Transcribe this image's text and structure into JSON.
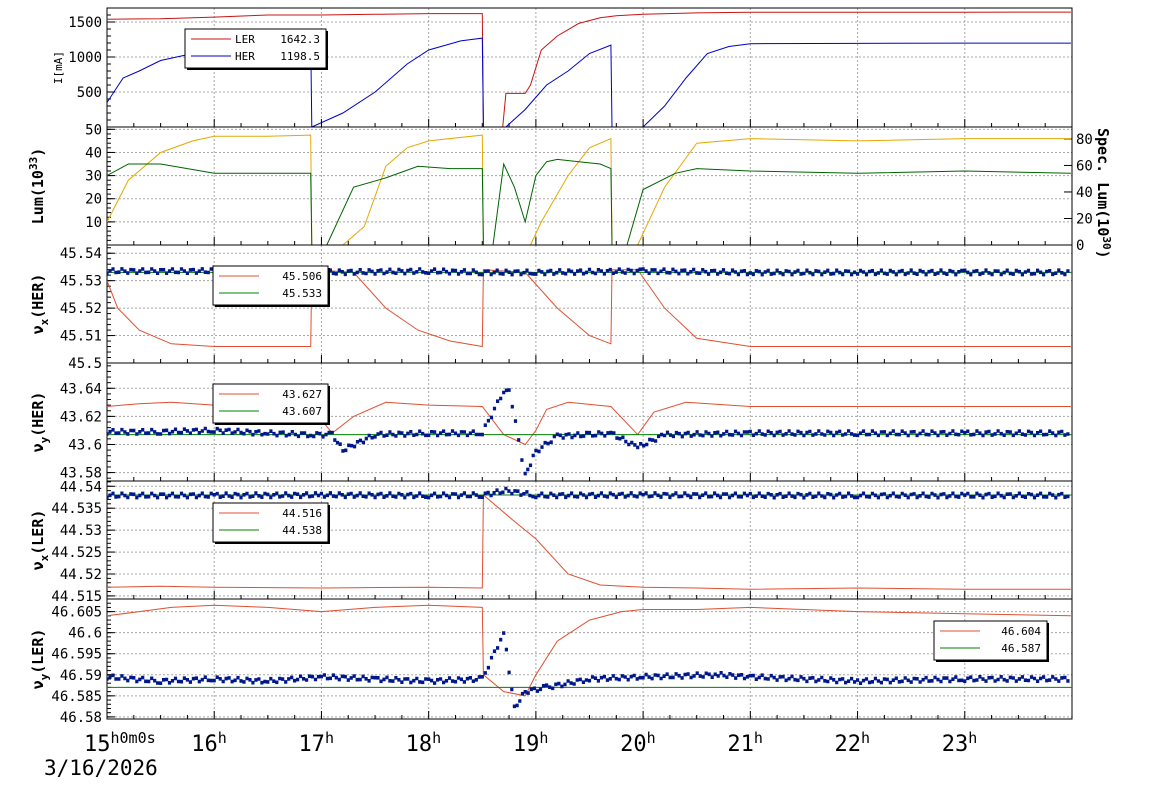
{
  "time_axis": {
    "tick_labels": [
      "15",
      "16",
      "17",
      "18",
      "19",
      "20",
      "21",
      "22",
      "23"
    ],
    "hour_suffix": "h",
    "first_tick_suffix": "0m0s",
    "date": "3/16/2026"
  },
  "chart_data": [
    {
      "type": "line",
      "ylabel": "I[mA]",
      "xlim": [
        15,
        24
      ],
      "ylim": [
        0,
        1700
      ],
      "yticks": [
        500,
        1000,
        1500
      ],
      "ytick_labels": [
        "500",
        "1000",
        "1500"
      ],
      "legend": {
        "placement": "top-left",
        "entries": [
          {
            "label": "LER",
            "value": "1642.3",
            "color": "#c81414"
          },
          {
            "label": "HER",
            "value": "1198.5",
            "color": "#0000c8"
          }
        ]
      },
      "series": [
        {
          "name": "LER",
          "color": "#c81414",
          "x": [
            15,
            15.5,
            16,
            16.5,
            17,
            17.5,
            18,
            18.5,
            18.51,
            18.69,
            18.72,
            18.9,
            18.95,
            19.05,
            19.2,
            19.4,
            19.6,
            19.75,
            20,
            20.5,
            21,
            22,
            23,
            23.99
          ],
          "y": [
            1540,
            1545,
            1570,
            1600,
            1600,
            1610,
            1620,
            1620,
            0,
            0,
            480,
            480,
            600,
            1100,
            1300,
            1480,
            1560,
            1590,
            1610,
            1630,
            1640,
            1640,
            1640,
            1642
          ]
        },
        {
          "name": "HER",
          "color": "#0000c8",
          "x": [
            15,
            15.15,
            15.3,
            15.5,
            15.8,
            16,
            16.3,
            16.6,
            16.9,
            16.91,
            17.2,
            17.5,
            17.8,
            18,
            18.3,
            18.5,
            18.51,
            18.72,
            18.9,
            19.1,
            19.3,
            19.5,
            19.7,
            19.71,
            20,
            20.2,
            20.4,
            20.6,
            20.8,
            21,
            22,
            23,
            23.99
          ],
          "y": [
            350,
            700,
            800,
            950,
            1050,
            1150,
            1200,
            1250,
            1250,
            0,
            200,
            500,
            900,
            1100,
            1230,
            1270,
            0,
            0,
            250,
            600,
            800,
            1050,
            1170,
            0,
            0,
            300,
            700,
            1050,
            1150,
            1190,
            1195,
            1198,
            1198
          ]
        }
      ]
    },
    {
      "type": "line",
      "ylabel": "Lum(10",
      "ylabel_exp": "33",
      "ylabel_close": ")",
      "ylabel_right": "Spec. Lum(10",
      "ylabel_right_exp": "30",
      "ylabel_right_close": ")",
      "xlim": [
        15,
        24
      ],
      "ylim": [
        0,
        51
      ],
      "ylim_right": [
        0,
        89
      ],
      "yticks": [
        10,
        20,
        30,
        40,
        50
      ],
      "ytick_labels": [
        "10",
        "20",
        "30",
        "40",
        "50"
      ],
      "yticks_right": [
        0,
        20,
        40,
        60,
        80
      ],
      "ytick_labels_right": [
        "0",
        "20",
        "40",
        "60",
        "80"
      ],
      "series": [
        {
          "color": "#e6a800",
          "x": [
            15,
            15.2,
            15.5,
            15.8,
            16,
            16.5,
            16.9,
            16.91,
            17.2,
            17.4,
            17.6,
            17.8,
            18,
            18.5,
            18.51,
            18.95,
            19.05,
            19.3,
            19.5,
            19.7,
            19.71,
            19.95,
            20.2,
            20.5,
            21,
            22,
            23,
            23.99
          ],
          "y": [
            10,
            28,
            40,
            45,
            47,
            47,
            47.5,
            0,
            0,
            8,
            34,
            42,
            45,
            47.5,
            0,
            0,
            10,
            30,
            42,
            46,
            0,
            0,
            25,
            44,
            46,
            45,
            46,
            46
          ]
        },
        {
          "color": "#006400",
          "x": [
            15,
            15.2,
            15.5,
            16,
            16.5,
            16.9,
            16.91,
            17.05,
            17.3,
            17.6,
            17.9,
            18.2,
            18.5,
            18.51,
            18.6,
            18.7,
            18.8,
            18.9,
            19.0,
            19.1,
            19.2,
            19.4,
            19.6,
            19.7,
            19.71,
            19.85,
            20,
            20.3,
            20.5,
            21,
            22,
            23,
            23.99
          ],
          "y": [
            30,
            35,
            35,
            31,
            31,
            31,
            0,
            0,
            25,
            29,
            34,
            33,
            33,
            0,
            0,
            35,
            25,
            10,
            30,
            36,
            37,
            36,
            35,
            33,
            0,
            0,
            24,
            31,
            33,
            32,
            31,
            32,
            31
          ]
        }
      ]
    },
    {
      "type": "line",
      "ylabel": "ν",
      "ylabel_sub": "x",
      "ylabel_tail": "(HER)",
      "xlim": [
        15,
        24
      ],
      "ylim": [
        45.5,
        45.543
      ],
      "yticks": [
        45.5,
        45.51,
        45.52,
        45.53,
        45.54
      ],
      "ytick_labels": [
        "45.5",
        "45.51",
        "45.52",
        "45.53",
        "45.54"
      ],
      "legend": {
        "placement": "top-left",
        "entries": [
          {
            "label": "",
            "value": "45.506",
            "color": "#e05030"
          },
          {
            "label": "",
            "value": "45.533",
            "color": "#008000"
          }
        ]
      },
      "series": [
        {
          "color": "#e05030",
          "x": [
            15,
            15.1,
            15.3,
            15.6,
            16,
            16.5,
            16.9,
            16.91,
            17.3,
            17.6,
            17.9,
            18.2,
            18.5,
            18.51,
            18.9,
            19.2,
            19.5,
            19.7,
            19.71,
            19.95,
            20.2,
            20.5,
            21,
            22,
            23,
            23.99
          ],
          "y": [
            45.53,
            45.52,
            45.512,
            45.507,
            45.506,
            45.506,
            45.506,
            45.534,
            45.533,
            45.52,
            45.512,
            45.508,
            45.506,
            45.534,
            45.533,
            45.52,
            45.51,
            45.507,
            45.534,
            45.534,
            45.52,
            45.509,
            45.506,
            45.506,
            45.506,
            45.506
          ]
        },
        {
          "color": "#008000",
          "x": [
            15,
            24
          ],
          "y": [
            45.533,
            45.533
          ]
        },
        {
          "color": "#00188c",
          "marker": "dots",
          "x": [
            15,
            16,
            17,
            18,
            18.5,
            19,
            20,
            21,
            22,
            23,
            23.99
          ],
          "y": [
            45.5335,
            45.5335,
            45.533,
            45.5335,
            45.533,
            45.533,
            45.5335,
            45.533,
            45.533,
            45.533,
            45.533
          ]
        }
      ]
    },
    {
      "type": "line",
      "ylabel": "ν",
      "ylabel_sub": "y",
      "ylabel_tail": "(HER)",
      "xlim": [
        15,
        24
      ],
      "ylim": [
        43.574,
        43.658
      ],
      "yticks": [
        43.58,
        43.6,
        43.62,
        43.64
      ],
      "ytick_labels": [
        "43.58",
        "43.6",
        "43.62",
        "43.64"
      ],
      "legend": {
        "placement": "top-left",
        "entries": [
          {
            "label": "",
            "value": "43.627",
            "color": "#e05030"
          },
          {
            "label": "",
            "value": "43.607",
            "color": "#008000"
          }
        ]
      },
      "series": [
        {
          "color": "#e05030",
          "x": [
            15,
            15.3,
            15.6,
            16,
            16.5,
            16.9,
            17.1,
            17.3,
            17.6,
            18,
            18.5,
            18.7,
            18.9,
            19.0,
            19.1,
            19.3,
            19.7,
            19.95,
            20.1,
            20.4,
            21,
            22,
            23,
            23.99
          ],
          "y": [
            43.627,
            43.629,
            43.63,
            43.628,
            43.627,
            43.627,
            43.608,
            43.62,
            43.63,
            43.628,
            43.627,
            43.607,
            43.6,
            43.61,
            43.625,
            43.63,
            43.627,
            43.607,
            43.623,
            43.63,
            43.627,
            43.627,
            43.627,
            43.627
          ]
        },
        {
          "color": "#008000",
          "x": [
            15,
            24
          ],
          "y": [
            43.607,
            43.607
          ]
        },
        {
          "color": "#00188c",
          "marker": "dots",
          "x": [
            15,
            15.5,
            16,
            16.5,
            16.9,
            17.1,
            17.2,
            17.5,
            18,
            18.5,
            18.7,
            18.75,
            18.9,
            19.0,
            19.2,
            19.5,
            19.7,
            19.95,
            20.2,
            21,
            22,
            23,
            23.99
          ],
          "y": [
            43.609,
            43.609,
            43.61,
            43.608,
            43.607,
            43.607,
            43.596,
            43.607,
            43.608,
            43.608,
            43.638,
            43.64,
            43.578,
            43.595,
            43.606,
            43.607,
            43.608,
            43.598,
            43.607,
            43.608,
            43.608,
            43.608,
            43.608
          ]
        }
      ]
    },
    {
      "type": "line",
      "ylabel": "ν",
      "ylabel_sub": "x",
      "ylabel_tail": "(LER)",
      "xlim": [
        15,
        24
      ],
      "ylim": [
        44.5143,
        44.5412
      ],
      "yticks": [
        44.515,
        44.52,
        44.525,
        44.53,
        44.535,
        44.54
      ],
      "ytick_labels": [
        "44.515",
        "44.52",
        "44.525",
        "44.53",
        "44.535",
        "44.54"
      ],
      "legend": {
        "placement": "top-left",
        "entries": [
          {
            "label": "",
            "value": "44.516",
            "color": "#e05030"
          },
          {
            "label": "",
            "value": "44.538",
            "color": "#008000"
          }
        ]
      },
      "series": [
        {
          "color": "#e05030",
          "x": [
            15,
            15.5,
            16,
            17,
            18,
            18.5,
            18.51,
            18.8,
            19.0,
            19.3,
            19.6,
            20,
            20.5,
            21,
            22,
            23,
            23.99
          ],
          "y": [
            44.517,
            44.5172,
            44.517,
            44.5168,
            44.517,
            44.5168,
            44.538,
            44.532,
            44.528,
            44.52,
            44.5175,
            44.517,
            44.5168,
            44.5165,
            44.5168,
            44.5165,
            44.5165
          ]
        },
        {
          "color": "#008000",
          "x": [
            15,
            24
          ],
          "y": [
            44.538,
            44.538
          ]
        },
        {
          "color": "#00188c",
          "marker": "dots",
          "x": [
            15,
            16,
            17,
            18,
            18.5,
            18.72,
            19,
            20,
            21,
            22,
            23,
            23.99
          ],
          "y": [
            44.5379,
            44.5379,
            44.538,
            44.5379,
            44.538,
            44.539,
            44.5379,
            44.538,
            44.5379,
            44.5379,
            44.5379,
            44.5379
          ]
        }
      ]
    },
    {
      "type": "line",
      "ylabel": "ν",
      "ylabel_sub": "y",
      "ylabel_tail": "(LER)",
      "xlim": [
        15,
        24
      ],
      "ylim": [
        46.5795,
        46.608
      ],
      "yticks": [
        46.58,
        46.585,
        46.59,
        46.595,
        46.6,
        46.605
      ],
      "ytick_labels": [
        "46.58",
        "46.585",
        "46.59",
        "46.595",
        "46.6",
        "46.605"
      ],
      "legend": {
        "placement": "top-right",
        "entries": [
          {
            "label": "",
            "value": "46.604",
            "color": "#e05030"
          },
          {
            "label": "",
            "value": "46.587",
            "color": "#008000"
          }
        ]
      },
      "series": [
        {
          "color": "#e05030",
          "x": [
            15,
            15.3,
            15.6,
            16,
            16.5,
            17,
            17.5,
            18,
            18.5,
            18.51,
            18.7,
            18.9,
            19.0,
            19.2,
            19.5,
            19.8,
            20,
            20.5,
            21,
            22,
            23,
            23.99
          ],
          "y": [
            46.604,
            46.605,
            46.606,
            46.6065,
            46.606,
            46.605,
            46.606,
            46.6065,
            46.606,
            46.59,
            46.586,
            46.585,
            46.59,
            46.598,
            46.603,
            46.605,
            46.6055,
            46.6055,
            46.606,
            46.605,
            46.6045,
            46.604
          ]
        },
        {
          "color": "#008000",
          "x": [
            15,
            24
          ],
          "y": [
            46.587,
            46.587
          ]
        },
        {
          "color": "#00188c",
          "marker": "dots",
          "x": [
            15,
            15.5,
            16,
            16.5,
            17,
            17.5,
            18,
            18.5,
            18.7,
            18.8,
            18.9,
            19.1,
            19.5,
            20,
            20.7,
            21,
            22,
            23,
            23.99
          ],
          "y": [
            46.5895,
            46.5885,
            46.589,
            46.5885,
            46.5895,
            46.589,
            46.5885,
            46.589,
            46.6,
            46.582,
            46.586,
            46.587,
            46.589,
            46.5895,
            46.59,
            46.5895,
            46.5885,
            46.589,
            46.589
          ]
        }
      ]
    }
  ]
}
